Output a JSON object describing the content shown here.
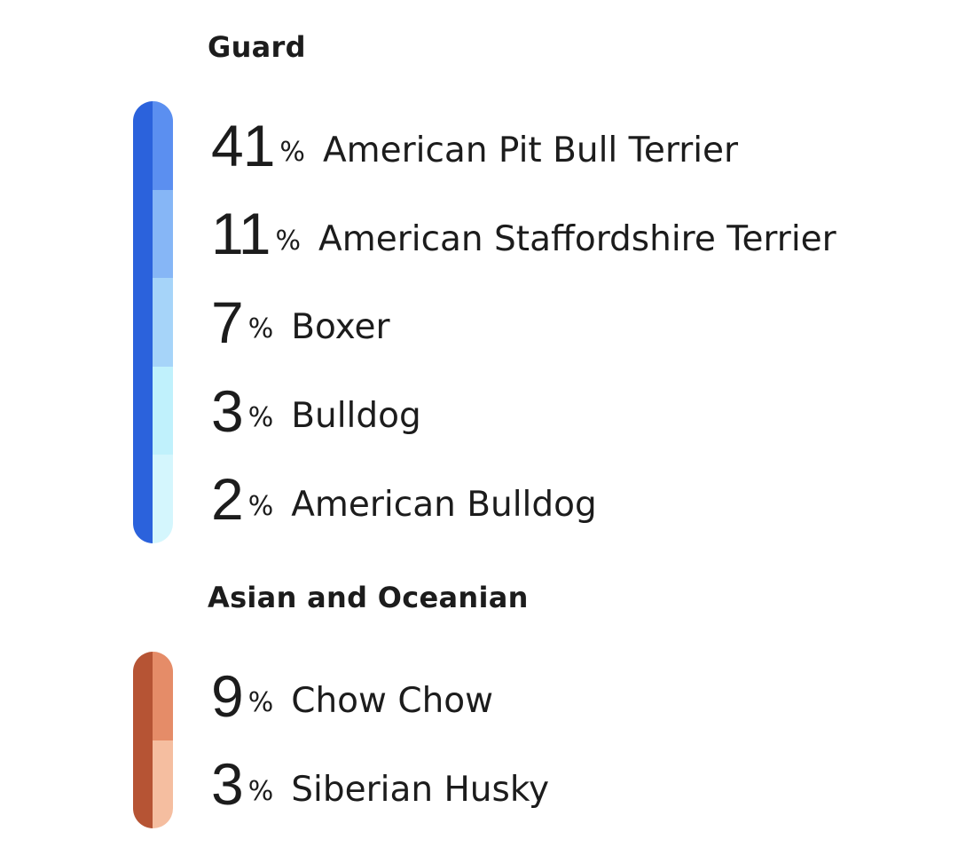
{
  "groups": [
    {
      "title": "Guard",
      "accent_dark": "#2b62dc",
      "items": [
        {
          "percent": "41",
          "sign": "%",
          "breed": "American Pit Bull Terrier",
          "color": "#5b8ff0"
        },
        {
          "percent": "11",
          "sign": "%",
          "breed": "American Staffordshire Terrier",
          "color": "#86b6f6"
        },
        {
          "percent": "7",
          "sign": "%",
          "breed": "Boxer",
          "color": "#a6d4f9"
        },
        {
          "percent": "3",
          "sign": "%",
          "breed": "Bulldog",
          "color": "#c0f1fc"
        },
        {
          "percent": "2",
          "sign": "%",
          "breed": "American Bulldog",
          "color": "#d4f6fd"
        }
      ]
    },
    {
      "title": "Asian and Oceanian",
      "accent_dark": "#b65434",
      "items": [
        {
          "percent": "9",
          "sign": "%",
          "breed": "Chow Chow",
          "color": "#e58c68"
        },
        {
          "percent": "3",
          "sign": "%",
          "breed": "Siberian Husky",
          "color": "#f5bea0"
        }
      ]
    }
  ]
}
